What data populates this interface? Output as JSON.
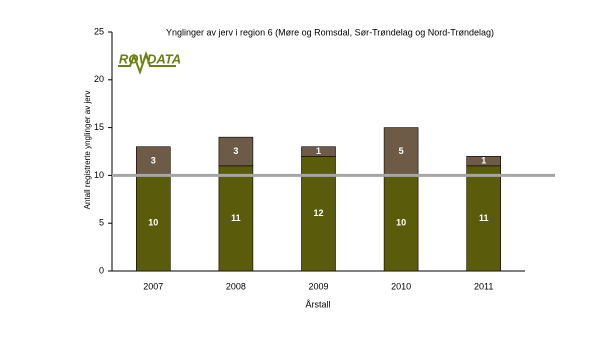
{
  "chart_data": {
    "type": "stacked_bar",
    "title": "Ynglinger av jerv i region 6 (Møre og Romsdal, Sør-Trøndelag og Nord-Trøndelag)",
    "logo": "ROVDATA",
    "x_label": "Årstall",
    "y_label": "Antall registrerte ynglinger av jerv",
    "categories": [
      "2007",
      "2008",
      "2009",
      "2010",
      "2011"
    ],
    "series": [
      {
        "color": "#5b5c0b",
        "values": [
          10,
          11,
          12,
          10,
          11
        ]
      },
      {
        "color": "#6e5b47",
        "values": [
          3,
          3,
          1,
          5,
          1
        ]
      }
    ],
    "reference_line": 10,
    "reference_color": "#a6a6a6",
    "ylim": [
      0,
      25
    ],
    "yticks": [
      0,
      5,
      10,
      15,
      20,
      25
    ],
    "grid": false
  }
}
